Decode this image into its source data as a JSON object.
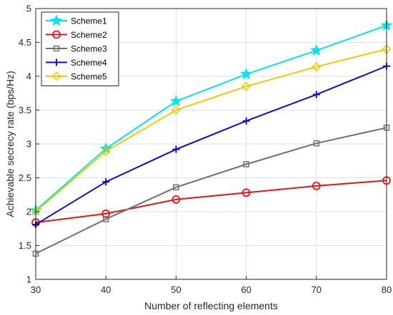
{
  "chart_data": {
    "type": "line",
    "xlabel": "Number of reflecting elements",
    "ylabel": "Achievable secrecy rate (bps/Hz)",
    "x": [
      30,
      40,
      50,
      60,
      70,
      80
    ],
    "xlim": [
      30,
      80
    ],
    "ylim": [
      1,
      5
    ],
    "xticks": [
      "30",
      "40",
      "50",
      "60",
      "70",
      "80"
    ],
    "yticks": [
      "1",
      "1.5",
      "2",
      "2.5",
      "3",
      "3.5",
      "4",
      "4.5",
      "5"
    ],
    "grid": true,
    "legend_position": "top-left",
    "series": [
      {
        "name": "Scheme1",
        "color": "#00e5ee",
        "marker": "star",
        "values": [
          2.02,
          2.93,
          3.63,
          4.03,
          4.38,
          4.75
        ]
      },
      {
        "name": "Scheme2",
        "color": "#ee1111",
        "marker": "circle",
        "values": [
          1.84,
          1.97,
          2.18,
          2.28,
          2.38,
          2.46
        ]
      },
      {
        "name": "Scheme3",
        "color": "#707070",
        "marker": "square",
        "values": [
          1.38,
          1.89,
          2.36,
          2.7,
          3.01,
          3.24
        ]
      },
      {
        "name": "Scheme4",
        "color": "#0d0dcc",
        "marker": "plus",
        "values": [
          1.81,
          2.44,
          2.92,
          3.34,
          3.73,
          4.15
        ]
      },
      {
        "name": "Scheme5",
        "color": "#f5c800",
        "marker": "diamond",
        "values": [
          2.0,
          2.89,
          3.5,
          3.85,
          4.14,
          4.4
        ]
      }
    ]
  }
}
